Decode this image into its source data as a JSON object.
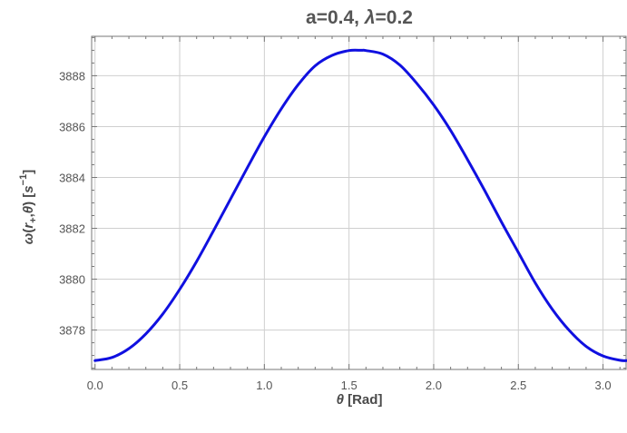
{
  "chart_data": {
    "type": "line",
    "title_parts": [
      "a=0.4, ",
      "λ",
      "=0.2"
    ],
    "xlabel_parts": [
      "θ",
      " [Rad]"
    ],
    "ylabel": {
      "omega": "ω",
      "open": "(",
      "r": "r",
      "sub": "+",
      "comma": ",",
      "theta": "θ",
      "close": ") [",
      "s": "s",
      "sup": "−1",
      "end": "]"
    },
    "xlim": [
      -0.02,
      3.1416
    ],
    "ylim": [
      3876.45,
      3889.55
    ],
    "x_ticks": [
      0.0,
      0.5,
      1.0,
      1.5,
      2.0,
      2.5,
      3.0
    ],
    "x_tick_labels": [
      "0.0",
      "0.5",
      "1.0",
      "1.5",
      "2.0",
      "2.5",
      "3.0"
    ],
    "y_ticks": [
      3878,
      3880,
      3882,
      3884,
      3886,
      3888
    ],
    "y_tick_labels": [
      "3878",
      "3880",
      "3882",
      "3884",
      "3886",
      "3888"
    ],
    "grid": true,
    "series": [
      {
        "color": "#1010e0",
        "x": [
          0.0,
          0.1,
          0.2,
          0.3,
          0.4,
          0.5,
          0.6,
          0.7,
          0.8,
          0.9,
          1.0,
          1.1,
          1.2,
          1.3,
          1.4,
          1.5,
          1.5708,
          1.6,
          1.7,
          1.8,
          1.9,
          2.0,
          2.1,
          2.2,
          2.3,
          2.4,
          2.5,
          2.6,
          2.7,
          2.8,
          2.9,
          3.0,
          3.1,
          3.1416
        ],
        "y": [
          3876.8,
          3876.92,
          3877.27,
          3877.85,
          3878.63,
          3879.6,
          3880.7,
          3881.91,
          3883.15,
          3884.39,
          3885.6,
          3886.7,
          3887.65,
          3888.39,
          3888.8,
          3888.99,
          3889.0,
          3888.99,
          3888.85,
          3888.42,
          3887.7,
          3886.85,
          3885.85,
          3884.7,
          3883.5,
          3882.25,
          3881.05,
          3879.85,
          3878.82,
          3877.99,
          3877.36,
          3876.98,
          3876.81,
          3876.8
        ]
      }
    ]
  }
}
